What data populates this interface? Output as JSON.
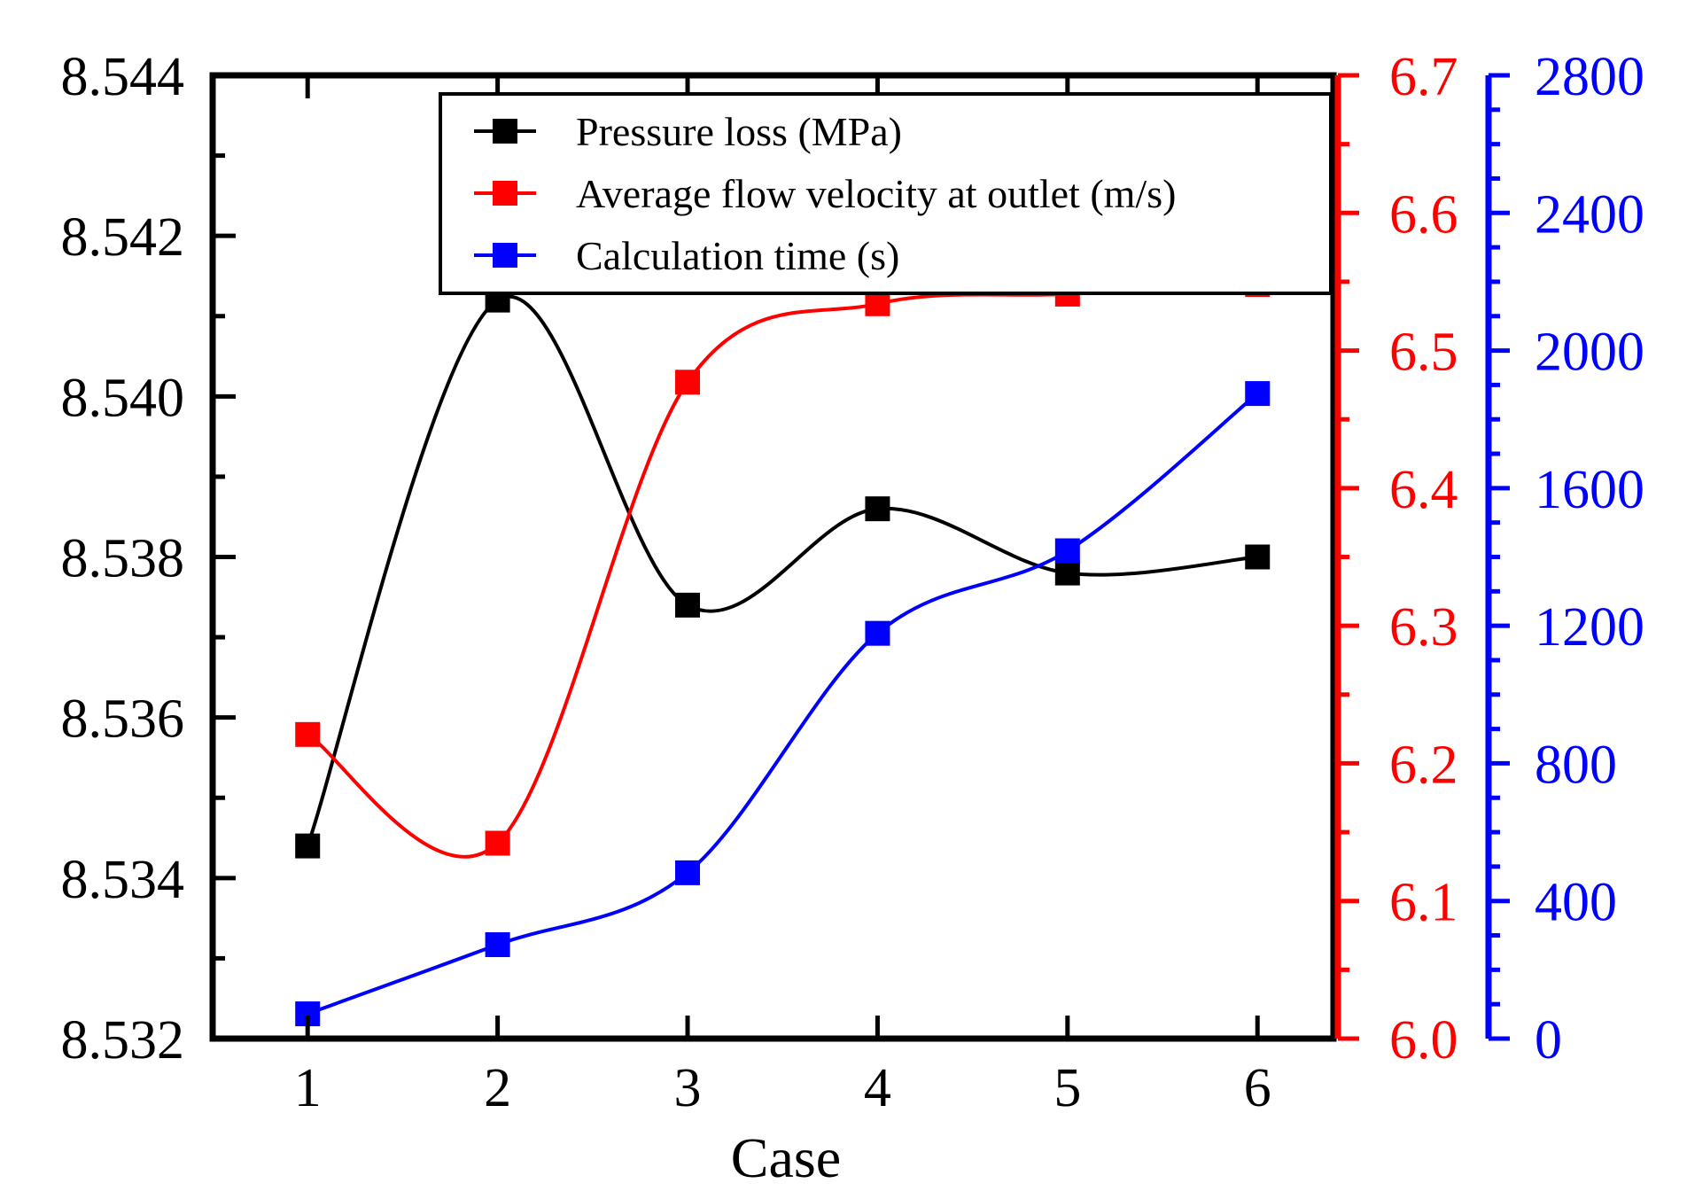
{
  "chart_data": {
    "type": "line",
    "xlabel": "Case",
    "x": [
      1,
      2,
      3,
      4,
      5,
      6
    ],
    "x_ticks": [
      "1",
      "2",
      "3",
      "4",
      "5",
      "6"
    ],
    "xlim": [
      0.5,
      6.4
    ],
    "axes": {
      "left": {
        "color": "#000000",
        "ylim": [
          8.532,
          8.544
        ],
        "ticks": [
          8.532,
          8.534,
          8.536,
          8.538,
          8.54,
          8.542,
          8.544
        ],
        "tick_labels": [
          "8.532",
          "8.534",
          "8.536",
          "8.538",
          "8.540",
          "8.542",
          "8.544"
        ]
      },
      "right_red": {
        "color": "#ff0000",
        "ylim": [
          6.0,
          6.7
        ],
        "ticks": [
          6.0,
          6.1,
          6.2,
          6.3,
          6.4,
          6.5,
          6.6,
          6.7
        ],
        "tick_labels": [
          "6.0",
          "6.1",
          "6.2",
          "6.3",
          "6.4",
          "6.5",
          "6.6",
          "6.7"
        ]
      },
      "right_blue": {
        "color": "#0000ff",
        "ylim": [
          0,
          2800
        ],
        "ticks": [
          0,
          400,
          800,
          1200,
          1600,
          2000,
          2400,
          2800
        ],
        "tick_labels": [
          "0",
          "400",
          "800",
          "1200",
          "1600",
          "2000",
          "2400",
          "2800"
        ]
      }
    },
    "series": [
      {
        "name": "Pressure loss (MPa)",
        "axis": "left",
        "color": "#000000",
        "values": [
          8.5344,
          8.5412,
          8.5374,
          8.5386,
          8.5378,
          8.538
        ]
      },
      {
        "name": "Average flow velocity at outlet (m/s)",
        "axis": "right_red",
        "color": "#ff0000",
        "values": [
          6.221,
          6.142,
          6.477,
          6.534,
          6.541,
          6.548
        ]
      },
      {
        "name": "Calculation time (s)",
        "axis": "right_blue",
        "color": "#0000ff",
        "values": [
          72,
          273,
          482,
          1178,
          1418,
          1875
        ]
      }
    ],
    "legend": "top-center",
    "grid": false
  }
}
